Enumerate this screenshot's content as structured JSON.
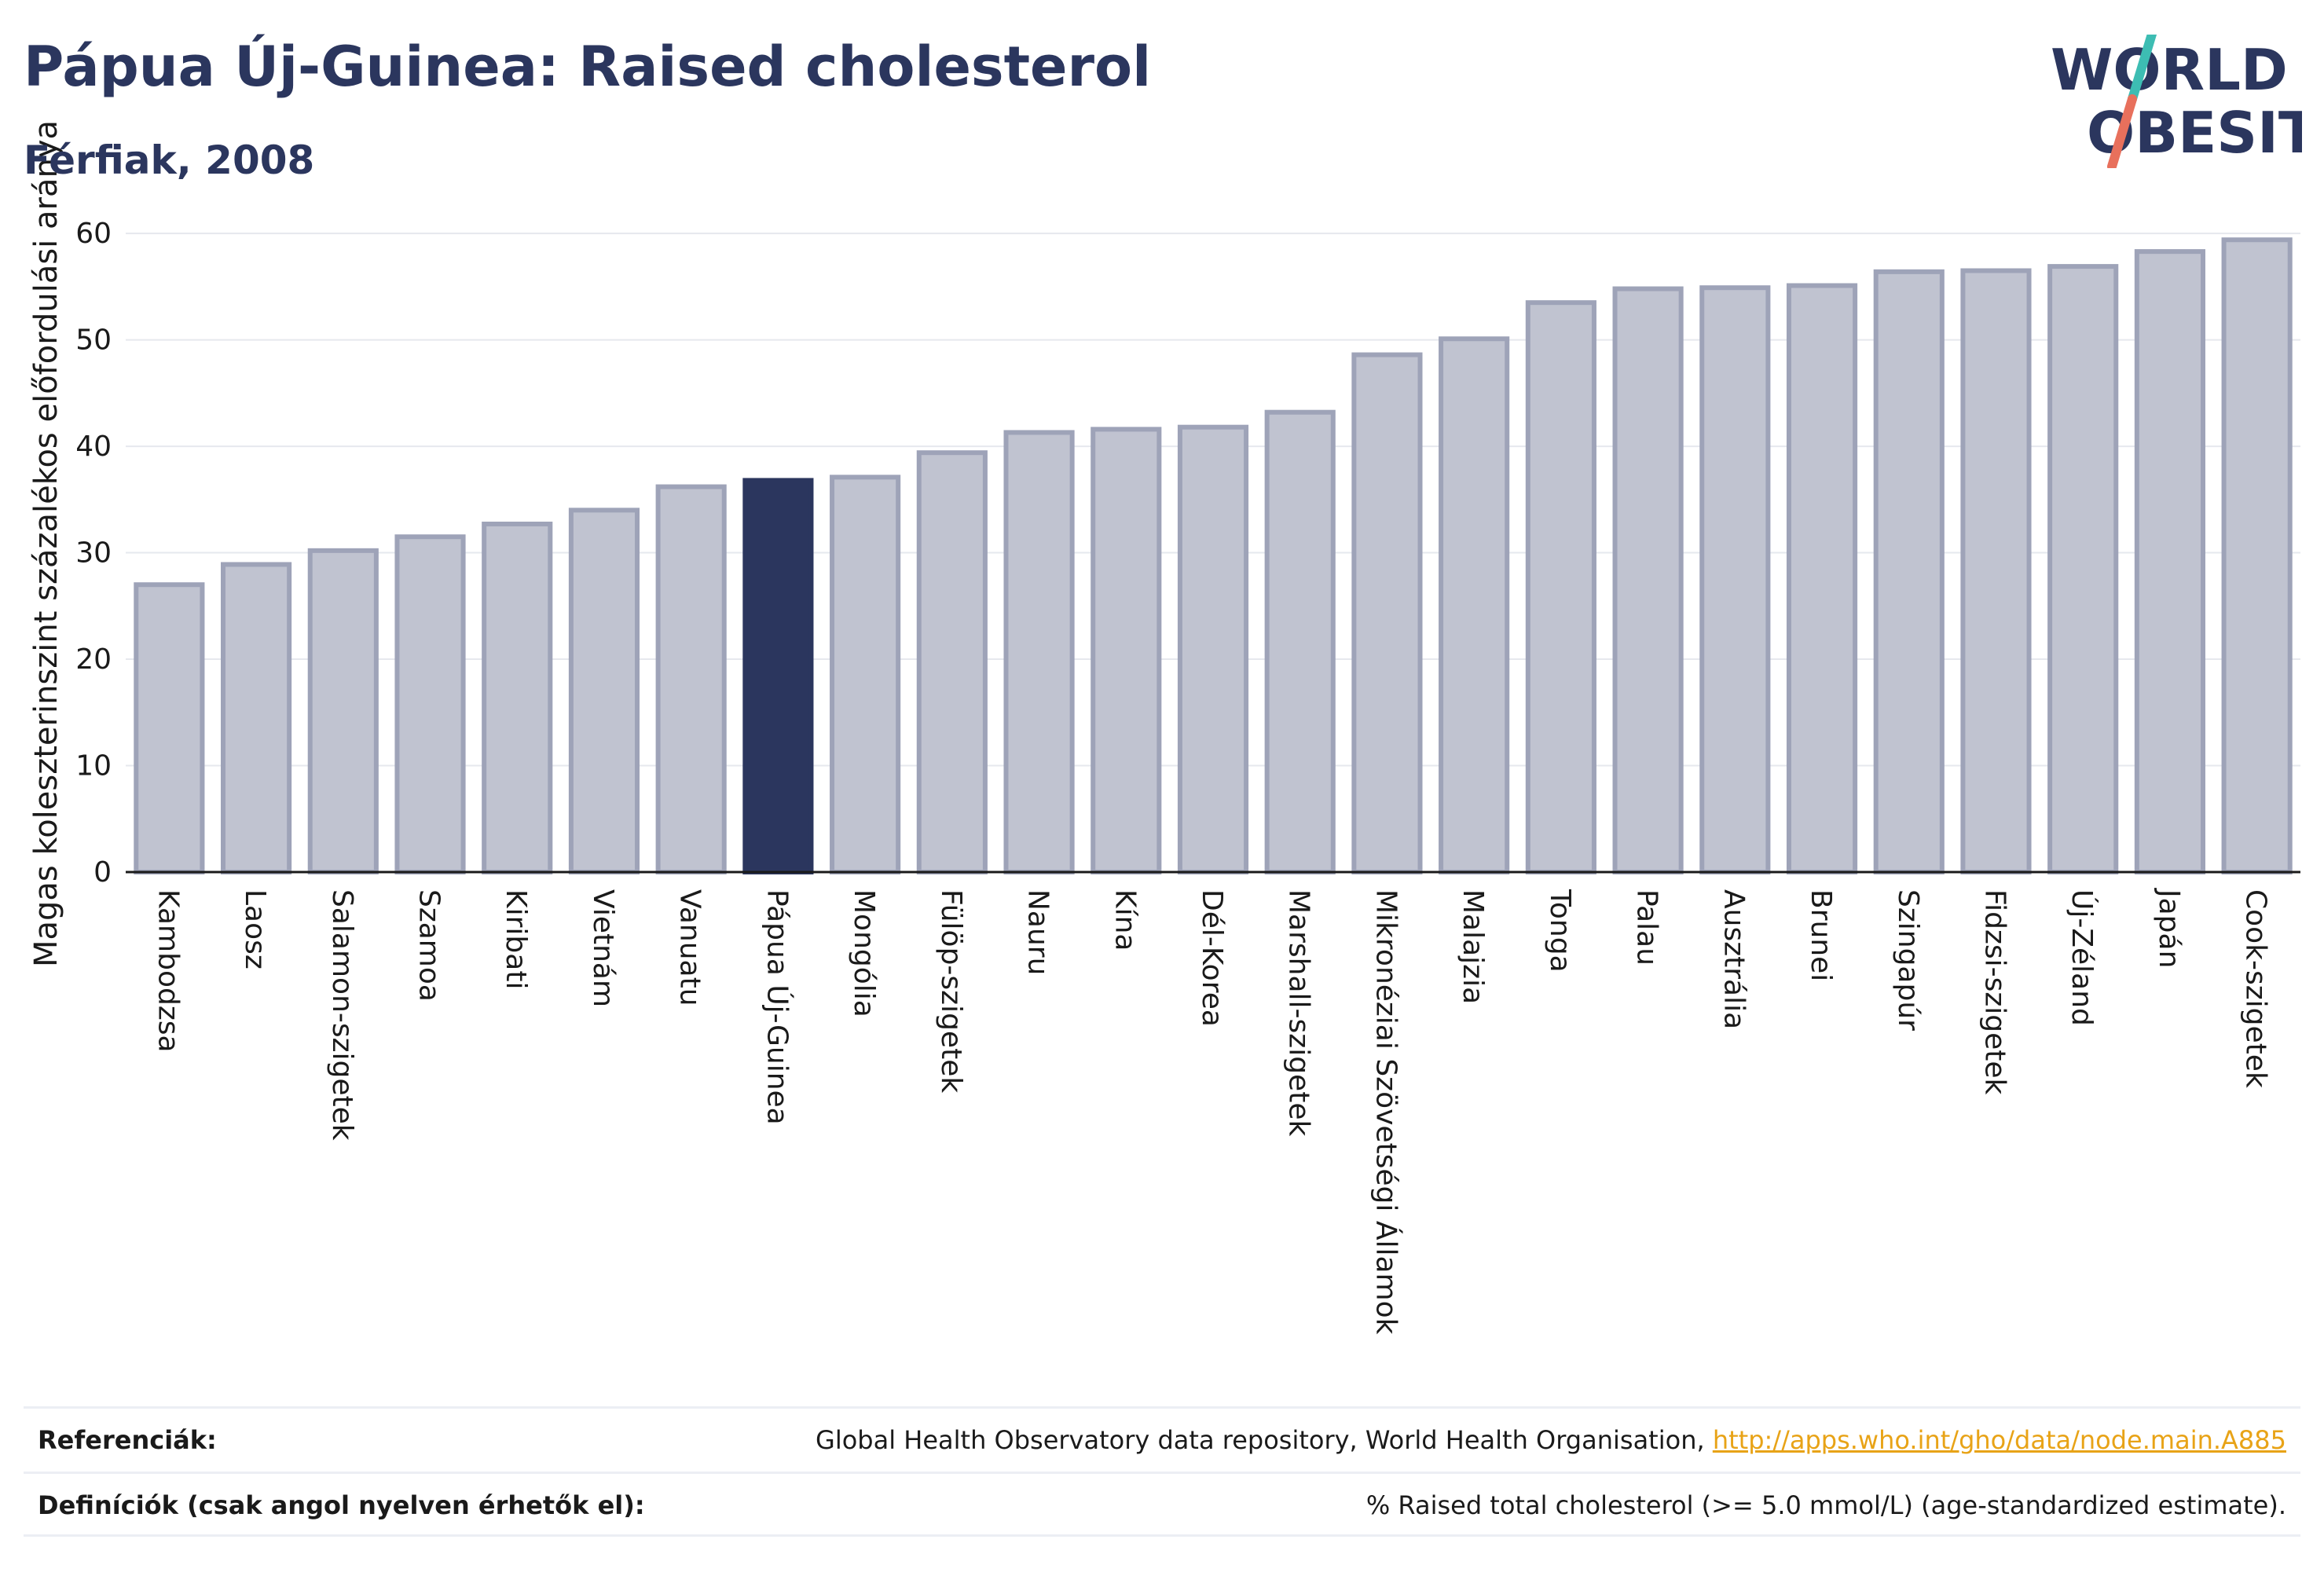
{
  "title": "Pápua Új-Guinea: Raised cholesterol",
  "subtitle": "Férfiak, 2008",
  "logo": {
    "line1": "WORLD",
    "line2": "OBESITY"
  },
  "colors": {
    "bar": "#c0c3d0",
    "bar_stroke": "#9ea3b8",
    "highlight": "#2b365e",
    "grid": "#e6e8ee",
    "axis": "#1a1a1a",
    "logo_teal": "#3dbdb3",
    "logo_red": "#e8705c"
  },
  "chart_data": {
    "type": "bar",
    "ylabel": "Magas koleszterinszint százalékos előfordulási aránya",
    "ylim": [
      0,
      62
    ],
    "yticks": [
      0,
      10,
      20,
      30,
      40,
      50,
      60
    ],
    "grid": true,
    "highlight": "Pápua Új-Guinea",
    "categories": [
      "Kambodzsa",
      "Laosz",
      "Salamon-szigetek",
      "Szamoa",
      "Kiribati",
      "Vietnám",
      "Vanuatu",
      "Pápua Új-Guinea",
      "Mongólia",
      "Fülöp-szigetek",
      "Nauru",
      "Kína",
      "Dél-Korea",
      "Marshall-szigetek",
      "Mikronéziai Szövetségi Államok",
      "Malajzia",
      "Tonga",
      "Palau",
      "Ausztrália",
      "Brunei",
      "Szingapúr",
      "Fidzsi-szigetek",
      "Új-Zéland",
      "Japán",
      "Cook-szigetek"
    ],
    "values": [
      27.0,
      28.9,
      30.2,
      31.5,
      32.7,
      34.0,
      36.2,
      36.8,
      37.1,
      39.4,
      41.3,
      41.6,
      41.8,
      43.2,
      48.6,
      50.1,
      53.5,
      54.8,
      54.9,
      55.1,
      56.4,
      56.5,
      56.9,
      58.3,
      59.4
    ]
  },
  "footer": {
    "ref_label": "Referenciák:",
    "ref_text": "Global Health Observatory data repository, World Health Organisation, ",
    "ref_link": "http://apps.who.int/gho/data/node.main.A885",
    "def_label": "Definíciók (csak angol nyelven érhetők el):",
    "def_text": "% Raised total cholesterol (>= 5.0 mmol/L) (age-standardized estimate)."
  }
}
